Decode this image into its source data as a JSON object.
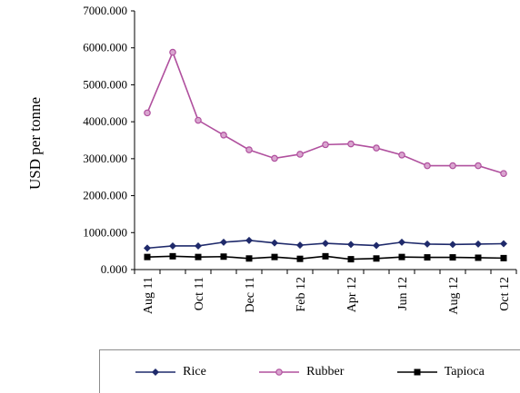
{
  "chart_data": {
    "type": "line",
    "title": "",
    "xlabel": "",
    "ylabel": "USD per tonne",
    "ylim": [
      0,
      7000
    ],
    "yticks": [
      "0.000",
      "1000.000",
      "2000.000",
      "3000.000",
      "4000.000",
      "5000.000",
      "6000.000",
      "7000.000"
    ],
    "categories": [
      "Aug 11",
      "Sep 11",
      "Oct 11",
      "Nov 11",
      "Dec 11",
      "Jan 12",
      "Feb 12",
      "Mar 12",
      "Apr 12",
      "May 12",
      "Jun 12",
      "Jul 12",
      "Aug 12",
      "Sep 12",
      "Oct 12"
    ],
    "xtick_labels": [
      "Aug 11",
      "",
      "Oct 11",
      "",
      "Dec 11",
      "",
      "Feb 12",
      "",
      "Apr 12",
      "",
      "Jun 12",
      "",
      "Aug 12",
      "",
      "Oct 12"
    ],
    "grid": false,
    "legend_position": "bottom",
    "series": [
      {
        "name": "Rice",
        "color": "#1f2a6b",
        "marker": "diamond",
        "values": [
          580,
          640,
          640,
          740,
          790,
          720,
          660,
          710,
          680,
          650,
          740,
          690,
          680,
          690,
          700
        ]
      },
      {
        "name": "Rubber",
        "color": "#b0509e",
        "marker": "circle",
        "values": [
          4240,
          5880,
          4040,
          3640,
          3240,
          3010,
          3120,
          3380,
          3400,
          3290,
          3100,
          2810,
          2810,
          2810,
          2600
        ]
      },
      {
        "name": "Tapioca",
        "color": "#000000",
        "marker": "square",
        "values": [
          340,
          360,
          340,
          350,
          300,
          340,
          290,
          360,
          280,
          300,
          340,
          330,
          330,
          320,
          310
        ]
      }
    ]
  }
}
